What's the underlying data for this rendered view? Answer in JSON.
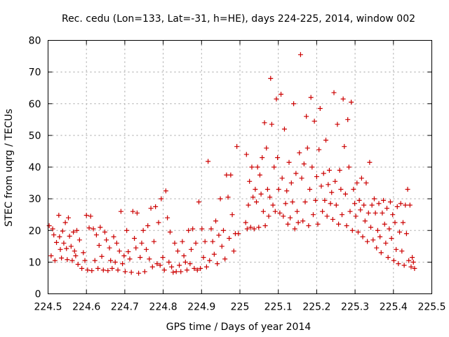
{
  "chart_data": {
    "type": "scatter",
    "title": "Rec. cedu (Lon=133, Lat=-31, h=HE), days 224-225, 2014, window 002",
    "xlabel": "GPS time / Days of year 2014",
    "ylabel": "STEC from uqrg / TECUs",
    "xlim": [
      224.5,
      225.5
    ],
    "ylim": [
      0,
      80
    ],
    "grid": true,
    "marker": "+",
    "color": "#cc0000",
    "x_ticks": [
      "224.5",
      "224.6",
      "224.7",
      "224.8",
      "224.9",
      "225",
      "225.1",
      "225.2",
      "225.3",
      "225.4",
      "225.5"
    ],
    "y_ticks": [
      "0",
      "10",
      "20",
      "30",
      "40",
      "50",
      "60",
      "70",
      "80"
    ],
    "series": [
      {
        "name": "STEC",
        "points": [
          [
            224.503,
            21.5
          ],
          [
            224.508,
            12.0
          ],
          [
            224.512,
            20.5
          ],
          [
            224.515,
            18.6
          ],
          [
            224.518,
            10.5
          ],
          [
            224.522,
            16.2
          ],
          [
            224.528,
            24.8
          ],
          [
            224.53,
            18.0
          ],
          [
            224.532,
            14.0
          ],
          [
            224.535,
            11.3
          ],
          [
            224.538,
            19.8
          ],
          [
            224.541,
            16.0
          ],
          [
            224.545,
            22.5
          ],
          [
            224.548,
            14.3
          ],
          [
            224.55,
            10.8
          ],
          [
            224.553,
            24.0
          ],
          [
            224.556,
            18.2
          ],
          [
            224.56,
            15.0
          ],
          [
            224.563,
            10.5
          ],
          [
            224.566,
            19.5
          ],
          [
            224.569,
            13.5
          ],
          [
            224.572,
            12.0
          ],
          [
            224.575,
            20.0
          ],
          [
            224.578,
            9.3
          ],
          [
            224.582,
            17.0
          ],
          [
            224.588,
            8.0
          ],
          [
            224.592,
            13.0
          ],
          [
            224.596,
            10.5
          ],
          [
            224.6,
            24.8
          ],
          [
            224.603,
            7.5
          ],
          [
            224.607,
            20.8
          ],
          [
            224.611,
            24.5
          ],
          [
            224.614,
            7.3
          ],
          [
            224.618,
            20.5
          ],
          [
            224.622,
            10.5
          ],
          [
            224.626,
            18.6
          ],
          [
            224.63,
            8.0
          ],
          [
            224.633,
            15.3
          ],
          [
            224.636,
            21.0
          ],
          [
            224.64,
            11.8
          ],
          [
            224.644,
            7.5
          ],
          [
            224.648,
            19.5
          ],
          [
            224.652,
            17.0
          ],
          [
            224.656,
            7.3
          ],
          [
            224.66,
            14.5
          ],
          [
            224.663,
            10.5
          ],
          [
            224.667,
            8.0
          ],
          [
            224.671,
            18.0
          ],
          [
            224.675,
            10.0
          ],
          [
            224.679,
            16.0
          ],
          [
            224.682,
            7.5
          ],
          [
            224.686,
            13.5
          ],
          [
            224.69,
            26.0
          ],
          [
            224.694,
            9.5
          ],
          [
            224.698,
            12.0
          ],
          [
            224.701,
            7.0
          ],
          [
            224.705,
            20.0
          ],
          [
            224.709,
            13.3
          ],
          [
            224.713,
            11.0
          ],
          [
            224.717,
            6.8
          ],
          [
            224.721,
            26.0
          ],
          [
            224.725,
            17.5
          ],
          [
            224.729,
            14.5
          ],
          [
            224.732,
            25.5
          ],
          [
            224.736,
            6.5
          ],
          [
            224.74,
            11.5
          ],
          [
            224.744,
            16.0
          ],
          [
            224.748,
            20.0
          ],
          [
            224.752,
            7.0
          ],
          [
            224.756,
            14.0
          ],
          [
            224.76,
            21.5
          ],
          [
            224.764,
            11.0
          ],
          [
            224.768,
            27.0
          ],
          [
            224.772,
            8.5
          ],
          [
            224.776,
            16.5
          ],
          [
            224.78,
            27.5
          ],
          [
            224.784,
            9.5
          ],
          [
            224.788,
            22.5
          ],
          [
            224.792,
            9.0
          ],
          [
            224.795,
            30.0
          ],
          [
            224.799,
            11.5
          ],
          [
            224.803,
            7.5
          ],
          [
            224.807,
            32.5
          ],
          [
            224.811,
            24.0
          ],
          [
            224.815,
            10.0
          ],
          [
            224.818,
            19.5
          ],
          [
            224.822,
            8.5
          ],
          [
            224.826,
            6.8
          ],
          [
            224.83,
            16.0
          ],
          [
            224.834,
            7.0
          ],
          [
            224.838,
            13.5
          ],
          [
            224.842,
            9.0
          ],
          [
            224.846,
            7.0
          ],
          [
            224.85,
            16.5
          ],
          [
            224.854,
            12.0
          ],
          [
            224.858,
            10.0
          ],
          [
            224.862,
            7.5
          ],
          [
            224.866,
            20.0
          ],
          [
            224.87,
            9.5
          ],
          [
            224.873,
            14.0
          ],
          [
            224.877,
            20.5
          ],
          [
            224.881,
            8.0
          ],
          [
            224.885,
            16.0
          ],
          [
            224.889,
            7.5
          ],
          [
            224.893,
            29.0
          ],
          [
            224.897,
            8.0
          ],
          [
            224.901,
            20.5
          ],
          [
            224.905,
            11.5
          ],
          [
            224.909,
            16.5
          ],
          [
            224.913,
            8.5
          ],
          [
            224.917,
            41.8
          ],
          [
            224.921,
            10.5
          ],
          [
            224.925,
            20.5
          ],
          [
            224.929,
            16.5
          ],
          [
            224.933,
            12.5
          ],
          [
            224.937,
            23.0
          ],
          [
            224.941,
            9.5
          ],
          [
            224.945,
            18.5
          ],
          [
            224.949,
            30.0
          ],
          [
            224.953,
            15.0
          ],
          [
            224.957,
            20.0
          ],
          [
            224.961,
            11.0
          ],
          [
            224.965,
            37.5
          ],
          [
            224.969,
            30.5
          ],
          [
            224.972,
            17.5
          ],
          [
            224.976,
            37.5
          ],
          [
            224.98,
            25.0
          ],
          [
            224.984,
            13.5
          ],
          [
            224.988,
            19.0
          ],
          [
            224.992,
            46.5
          ],
          [
            224.996,
            19.0
          ],
          [
            225.015,
            22.5
          ],
          [
            225.017,
            44.0
          ],
          [
            225.019,
            20.5
          ],
          [
            225.022,
            28.0
          ],
          [
            225.025,
            35.5
          ],
          [
            225.028,
            21.0
          ],
          [
            225.031,
            40.0
          ],
          [
            225.034,
            30.5
          ],
          [
            225.037,
            20.5
          ],
          [
            225.04,
            33.0
          ],
          [
            225.043,
            29.0
          ],
          [
            225.046,
            40.0
          ],
          [
            225.049,
            21.0
          ],
          [
            225.052,
            37.5
          ],
          [
            225.055,
            31.5
          ],
          [
            225.058,
            43.0
          ],
          [
            225.061,
            26.0
          ],
          [
            225.064,
            54.0
          ],
          [
            225.066,
            21.5
          ],
          [
            225.069,
            46.0
          ],
          [
            225.072,
            33.0
          ],
          [
            225.075,
            24.5
          ],
          [
            225.078,
            30.5
          ],
          [
            225.08,
            68.0
          ],
          [
            225.083,
            53.5
          ],
          [
            225.086,
            28.0
          ],
          [
            225.089,
            40.0
          ],
          [
            225.092,
            26.0
          ],
          [
            225.095,
            61.5
          ],
          [
            225.098,
            43.0
          ],
          [
            225.101,
            33.0
          ],
          [
            225.104,
            25.5
          ],
          [
            225.107,
            63.0
          ],
          [
            225.11,
            36.5
          ],
          [
            225.113,
            24.5
          ],
          [
            225.116,
            52.0
          ],
          [
            225.119,
            28.5
          ],
          [
            225.122,
            32.5
          ],
          [
            225.125,
            22.0
          ],
          [
            225.128,
            41.5
          ],
          [
            225.131,
            24.0
          ],
          [
            225.134,
            35.0
          ],
          [
            225.137,
            29.0
          ],
          [
            225.14,
            60.0
          ],
          [
            225.143,
            20.5
          ],
          [
            225.146,
            38.0
          ],
          [
            225.149,
            26.0
          ],
          [
            225.152,
            22.5
          ],
          [
            225.155,
            44.5
          ],
          [
            225.158,
            75.5
          ],
          [
            225.161,
            36.5
          ],
          [
            225.164,
            23.0
          ],
          [
            225.167,
            41.0
          ],
          [
            225.17,
            29.0
          ],
          [
            225.173,
            56.0
          ],
          [
            225.176,
            46.0
          ],
          [
            225.179,
            21.5
          ],
          [
            225.182,
            33.0
          ],
          [
            225.185,
            62.0
          ],
          [
            225.188,
            40.0
          ],
          [
            225.191,
            25.0
          ],
          [
            225.194,
            54.5
          ],
          [
            225.197,
            29.5
          ],
          [
            225.2,
            37.0
          ],
          [
            225.203,
            22.0
          ],
          [
            225.206,
            45.5
          ],
          [
            225.209,
            58.5
          ],
          [
            225.212,
            34.0
          ],
          [
            225.215,
            26.0
          ],
          [
            225.218,
            38.0
          ],
          [
            225.221,
            29.5
          ],
          [
            225.224,
            48.5
          ],
          [
            225.227,
            24.5
          ],
          [
            225.23,
            34.5
          ],
          [
            225.233,
            39.0
          ],
          [
            225.236,
            28.5
          ],
          [
            225.239,
            32.0
          ],
          [
            225.242,
            23.5
          ],
          [
            225.245,
            63.5
          ],
          [
            225.248,
            35.5
          ],
          [
            225.251,
            28.0
          ],
          [
            225.254,
            53.5
          ],
          [
            225.257,
            22.0
          ],
          [
            225.26,
            39.0
          ],
          [
            225.263,
            33.0
          ],
          [
            225.266,
            25.0
          ],
          [
            225.269,
            61.5
          ],
          [
            225.272,
            46.5
          ],
          [
            225.275,
            31.5
          ],
          [
            225.278,
            21.5
          ],
          [
            225.281,
            55.0
          ],
          [
            225.284,
            40.0
          ],
          [
            225.287,
            26.0
          ],
          [
            225.29,
            60.5
          ],
          [
            225.293,
            20.0
          ],
          [
            225.296,
            33.0
          ],
          [
            225.299,
            28.5
          ],
          [
            225.302,
            24.5
          ],
          [
            225.305,
            35.0
          ],
          [
            225.308,
            19.5
          ],
          [
            225.311,
            29.5
          ],
          [
            225.314,
            26.5
          ],
          [
            225.317,
            36.5
          ],
          [
            225.32,
            18.0
          ],
          [
            225.323,
            28.0
          ],
          [
            225.326,
            23.0
          ],
          [
            225.329,
            35.0
          ],
          [
            225.332,
            16.5
          ],
          [
            225.335,
            25.5
          ],
          [
            225.338,
            41.5
          ],
          [
            225.341,
            21.0
          ],
          [
            225.344,
            28.0
          ],
          [
            225.347,
            17.0
          ],
          [
            225.35,
            30.0
          ],
          [
            225.353,
            25.5
          ],
          [
            225.356,
            14.5
          ],
          [
            225.359,
            20.0
          ],
          [
            225.362,
            28.5
          ],
          [
            225.365,
            18.0
          ],
          [
            225.368,
            13.0
          ],
          [
            225.371,
            25.5
          ],
          [
            225.374,
            29.5
          ],
          [
            225.377,
            22.0
          ],
          [
            225.38,
            16.0
          ],
          [
            225.383,
            27.0
          ],
          [
            225.386,
            11.5
          ],
          [
            225.389,
            20.5
          ],
          [
            225.392,
            29.0
          ],
          [
            225.395,
            17.5
          ],
          [
            225.398,
            25.0
          ],
          [
            225.401,
            10.5
          ],
          [
            225.404,
            22.5
          ],
          [
            225.407,
            14.0
          ],
          [
            225.41,
            27.5
          ],
          [
            225.413,
            9.5
          ],
          [
            225.416,
            19.5
          ],
          [
            225.419,
            28.5
          ],
          [
            225.422,
            13.5
          ],
          [
            225.425,
            22.5
          ],
          [
            225.428,
            9.0
          ],
          [
            225.431,
            28.0
          ],
          [
            225.434,
            19.0
          ],
          [
            225.437,
            33.0
          ],
          [
            225.44,
            10.5
          ],
          [
            225.443,
            28.0
          ],
          [
            225.446,
            8.5
          ],
          [
            225.449,
            11.5
          ],
          [
            225.452,
            10.0
          ],
          [
            225.455,
            8.0
          ]
        ]
      }
    ]
  }
}
